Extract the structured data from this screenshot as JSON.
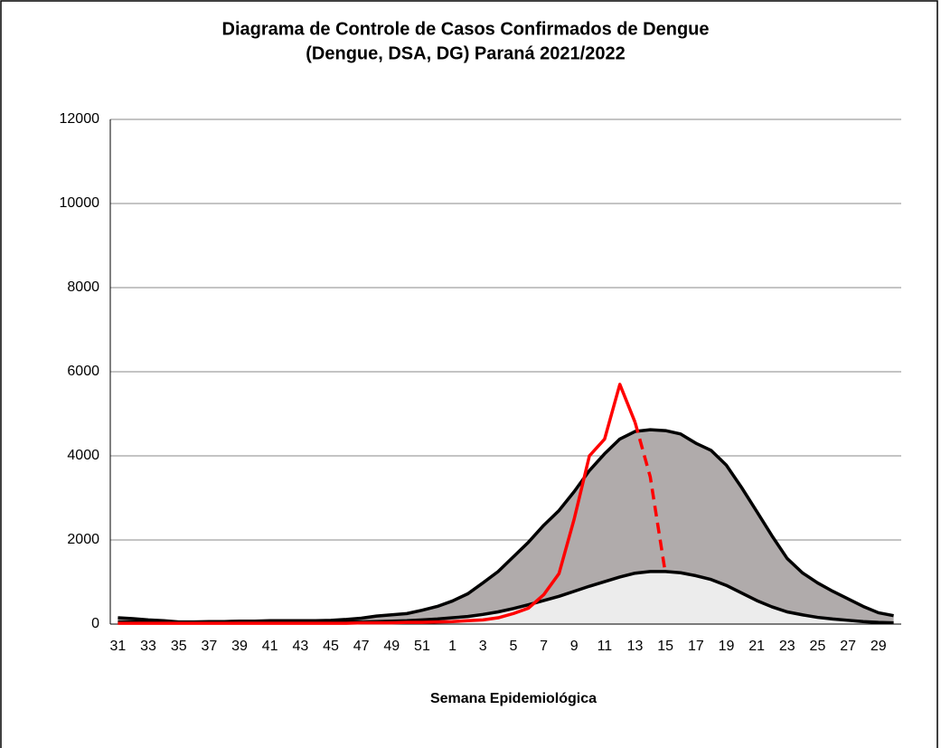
{
  "chart_data": {
    "type": "area-line",
    "title": [
      "Diagrama de Controle de Casos Confirmados de Dengue",
      "(Dengue, DSA, DG) Paraná 2021/2022"
    ],
    "x_label": "Semana Epidemiológica",
    "categories": [
      31,
      null,
      33,
      null,
      35,
      null,
      37,
      null,
      39,
      null,
      41,
      null,
      43,
      null,
      45,
      null,
      47,
      null,
      49,
      null,
      51,
      null,
      1,
      null,
      3,
      null,
      5,
      null,
      7,
      null,
      9,
      null,
      11,
      null,
      13,
      null,
      15,
      null,
      17,
      null,
      19,
      null,
      21,
      null,
      23,
      null,
      25,
      null,
      27,
      null,
      29,
      null
    ],
    "ylim": [
      0,
      12000
    ],
    "yticks": [
      0,
      2000,
      4000,
      6000,
      8000,
      10000,
      12000
    ],
    "grid": true,
    "series": [
      {
        "color": "#000000",
        "fill": "#b0abab",
        "dashed": false,
        "values": [
          150,
          130,
          100,
          80,
          50,
          50,
          60,
          60,
          70,
          70,
          80,
          80,
          80,
          80,
          90,
          110,
          140,
          190,
          220,
          250,
          330,
          420,
          550,
          720,
          980,
          1250,
          1600,
          1950,
          2350,
          2700,
          3150,
          3650,
          4050,
          4400,
          4580,
          4620,
          4600,
          4520,
          4300,
          4130,
          3780,
          3250,
          2680,
          2100,
          1560,
          1220,
          980,
          780,
          600,
          420,
          270,
          200
        ]
      },
      {
        "color": "#000000",
        "fill": "#ececec",
        "dashed": false,
        "values": [
          50,
          50,
          40,
          40,
          30,
          30,
          30,
          30,
          30,
          30,
          40,
          40,
          40,
          40,
          40,
          50,
          50,
          60,
          70,
          80,
          100,
          120,
          150,
          180,
          230,
          290,
          370,
          460,
          560,
          660,
          780,
          900,
          1010,
          1120,
          1210,
          1250,
          1250,
          1220,
          1150,
          1060,
          920,
          740,
          560,
          410,
          290,
          220,
          160,
          120,
          90,
          60,
          40,
          30
        ]
      },
      {
        "color": "#ff0000",
        "fill": null,
        "dashed": false,
        "values": [
          20,
          20,
          20,
          20,
          20,
          20,
          20,
          20,
          20,
          20,
          20,
          20,
          20,
          20,
          20,
          20,
          30,
          30,
          30,
          40,
          40,
          50,
          60,
          80,
          100,
          150,
          250,
          380,
          700,
          1200,
          2500,
          4000,
          4400,
          5700,
          4800,
          null,
          null,
          null,
          null,
          null,
          null,
          null,
          null,
          null,
          null,
          null,
          null,
          null,
          null,
          null,
          null,
          null
        ]
      },
      {
        "color": "#ff0000",
        "fill": null,
        "dashed": true,
        "values": [
          null,
          null,
          null,
          null,
          null,
          null,
          null,
          null,
          null,
          null,
          null,
          null,
          null,
          null,
          null,
          null,
          null,
          null,
          null,
          null,
          null,
          null,
          null,
          null,
          null,
          null,
          null,
          null,
          null,
          null,
          null,
          null,
          null,
          null,
          4800,
          3500,
          1200,
          null,
          null,
          null,
          null,
          null,
          null,
          null,
          null,
          null,
          null,
          null,
          null,
          null,
          null,
          null
        ]
      }
    ]
  }
}
